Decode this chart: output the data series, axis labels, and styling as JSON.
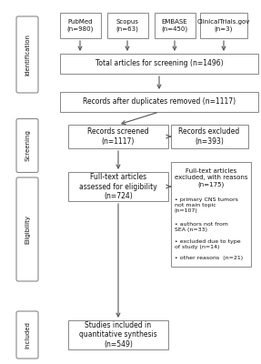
{
  "background": "#ffffff",
  "box_edgecolor": "#888888",
  "text_color": "#111111",
  "sidebar_labels": [
    "Identification",
    "Screening",
    "Eligibility",
    "Included"
  ],
  "fig_w": 2.87,
  "fig_h": 4.0,
  "dpi": 100
}
